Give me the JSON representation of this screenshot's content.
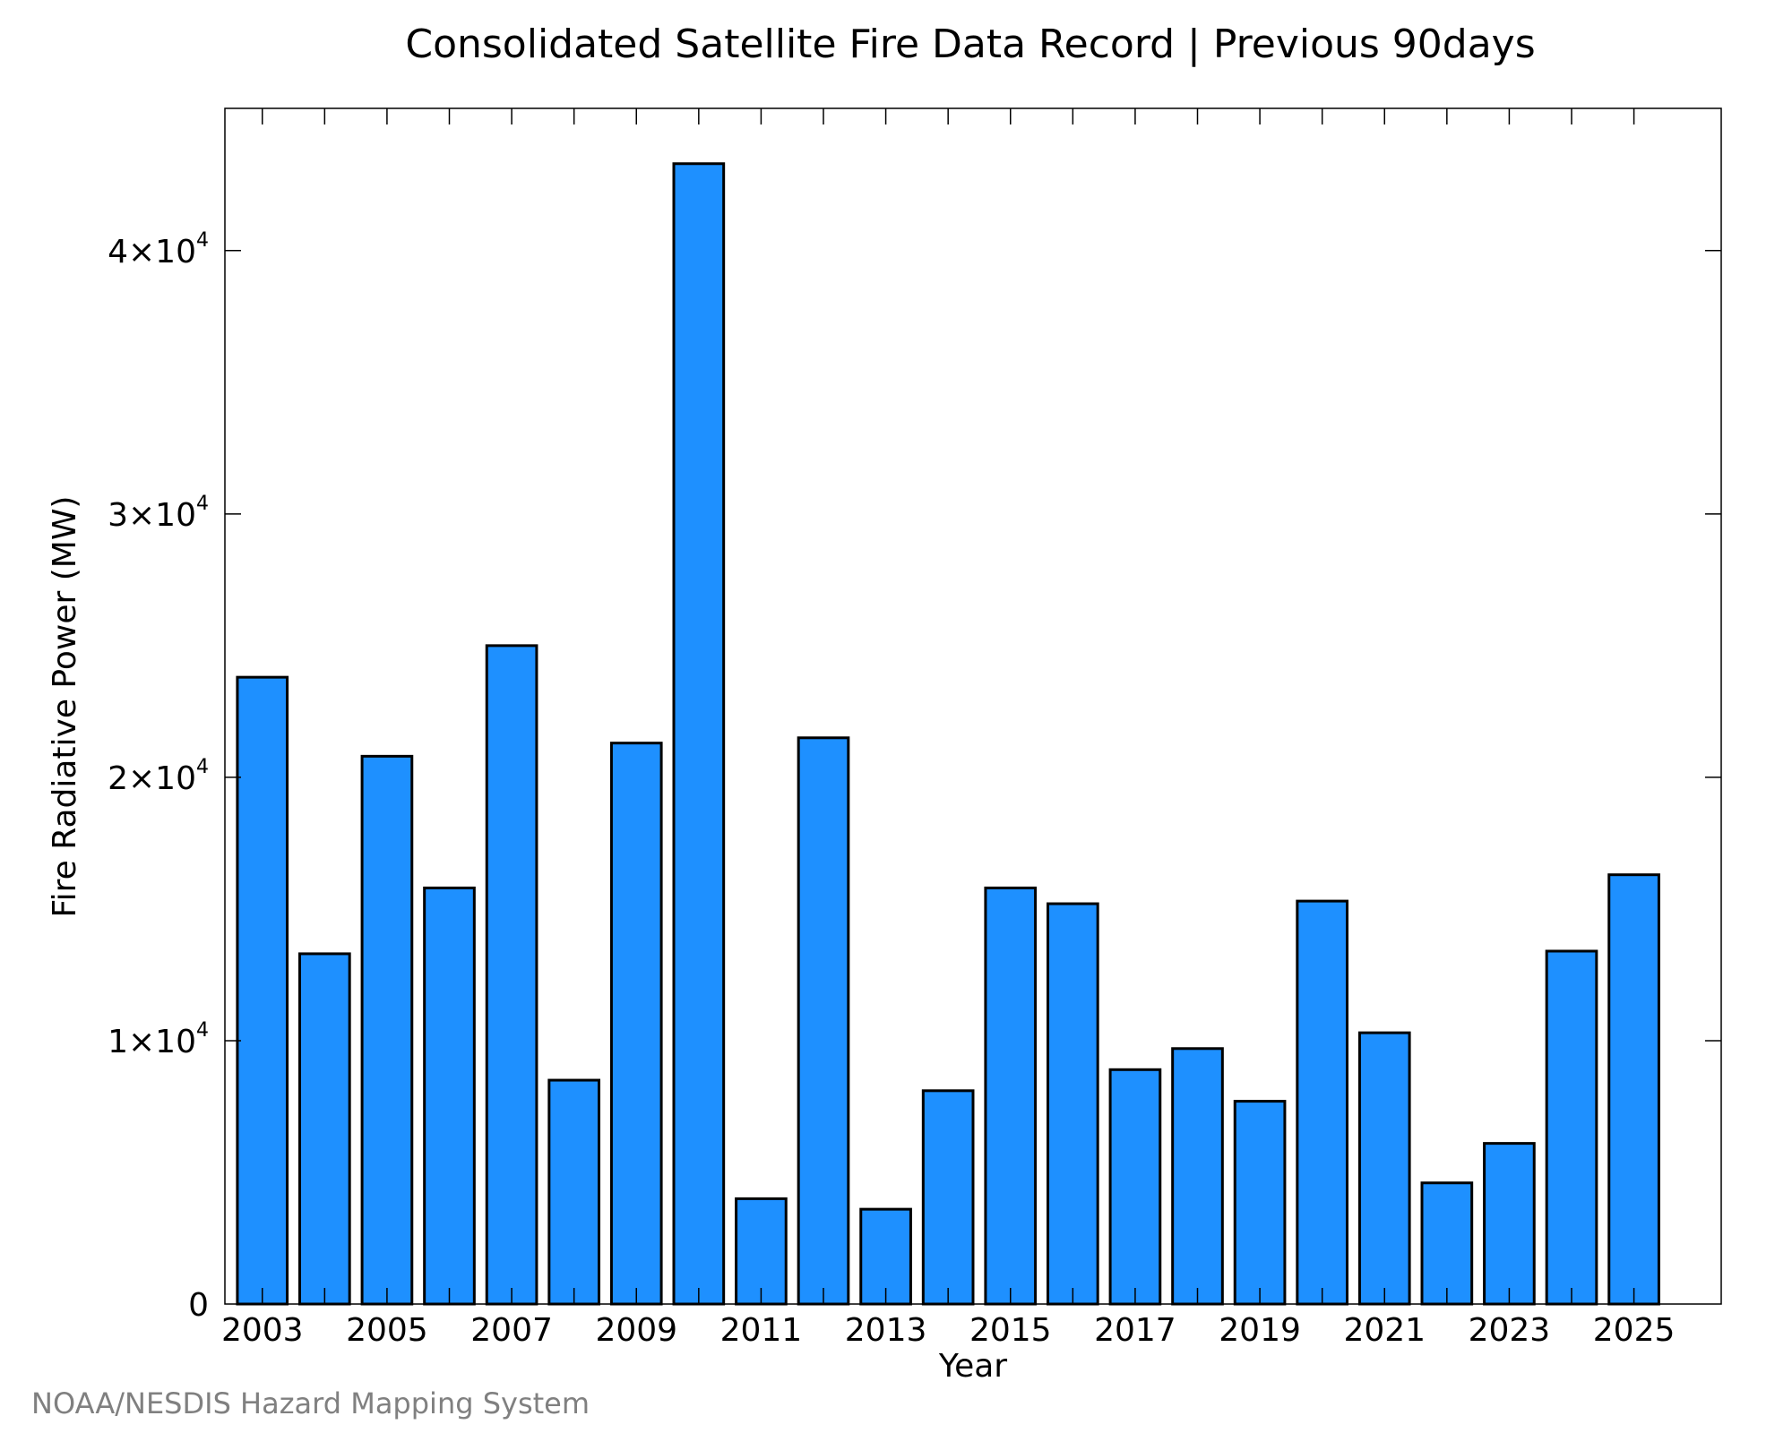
{
  "colors": {
    "bar_fill": "#1E90FF",
    "bar_stroke": "#000000",
    "credit": "#808080"
  },
  "credit": "NOAA/NESDIS Hazard Mapping System",
  "chart_data": {
    "type": "bar",
    "title": "Consolidated Satellite Fire Data Record | Previous 90days",
    "xlabel": "Year",
    "ylabel": "Fire Radiative Power (MW)",
    "categories": [
      2003,
      2004,
      2005,
      2006,
      2007,
      2008,
      2009,
      2010,
      2011,
      2012,
      2013,
      2014,
      2015,
      2016,
      2017,
      2018,
      2019,
      2020,
      2021,
      2022,
      2023,
      2024,
      2025
    ],
    "values": [
      23800,
      13300,
      20800,
      15800,
      25000,
      8500,
      21300,
      43300,
      4000,
      21500,
      3600,
      8100,
      15800,
      15200,
      8900,
      9700,
      7700,
      15300,
      10300,
      4600,
      6100,
      13400,
      16300
    ],
    "x_tick_labels": [
      "2003",
      "2005",
      "2007",
      "2009",
      "2011",
      "2013",
      "2015",
      "2017",
      "2019",
      "2021",
      "2023",
      "2025"
    ],
    "y_ticks": [
      {
        "value": 0,
        "mantissa": "0",
        "exponent": ""
      },
      {
        "value": 10000,
        "mantissa": "1×10",
        "exponent": "4"
      },
      {
        "value": 20000,
        "mantissa": "2×10",
        "exponent": "4"
      },
      {
        "value": 30000,
        "mantissa": "3×10",
        "exponent": "4"
      },
      {
        "value": 40000,
        "mantissa": "4×10",
        "exponent": "4"
      }
    ],
    "xlim": [
      2002.4,
      2026.4
    ],
    "ylim": [
      0,
      45400
    ],
    "grid": false,
    "legend": "none"
  }
}
